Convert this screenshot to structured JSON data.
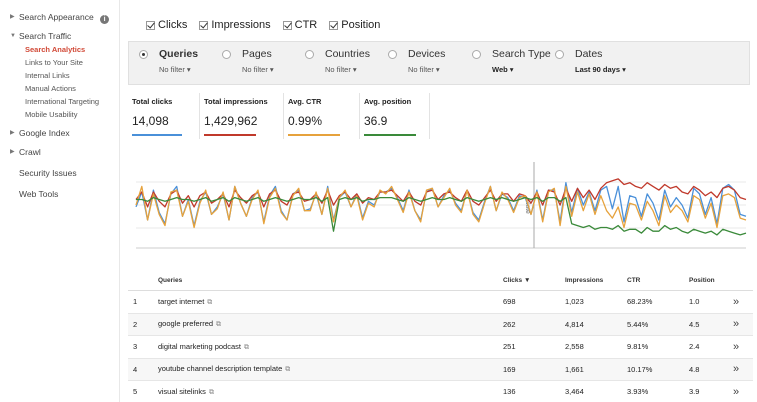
{
  "sidebar": {
    "items": [
      {
        "label": "Search Appearance",
        "info": "i"
      },
      {
        "label": "Search Traffic"
      },
      {
        "label": "Google Index"
      },
      {
        "label": "Crawl"
      },
      {
        "label": "Security Issues"
      },
      {
        "label": "Web Tools"
      }
    ],
    "subitems": [
      "Search Analytics",
      "Links to Your Site",
      "Internal Links",
      "Manual Actions",
      "International Targeting",
      "Mobile Usability"
    ]
  },
  "metrics": [
    "Clicks",
    "Impressions",
    "CTR",
    "Position"
  ],
  "filters": [
    {
      "label": "Queries",
      "value": "No filter ▾",
      "selected": true
    },
    {
      "label": "Pages",
      "value": "No filter ▾",
      "selected": false
    },
    {
      "label": "Countries",
      "value": "No filter ▾",
      "selected": false
    },
    {
      "label": "Devices",
      "value": "No filter ▾",
      "selected": false
    },
    {
      "label": "Search Type",
      "value": "Web ▾",
      "selected": false
    },
    {
      "label": "Dates",
      "value": "Last 90 days ▾",
      "selected": false
    }
  ],
  "totals": [
    {
      "label": "Total clicks",
      "value": "14,098",
      "color": "#4a90d9"
    },
    {
      "label": "Total impressions",
      "value": "1,429,962",
      "color": "#c0392b"
    },
    {
      "label": "Avg. CTR",
      "value": "0.99%",
      "color": "#e6a23c"
    },
    {
      "label": "Avg. position",
      "value": "36.9",
      "color": "#3a8a3a"
    }
  ],
  "chart_data": {
    "type": "line",
    "annotation": "Note",
    "series": [
      {
        "name": "Clicks",
        "color": "#4a90d9",
        "values": [
          44,
          60,
          30,
          62,
          38,
          26,
          58,
          66,
          34,
          52,
          24,
          50,
          60,
          36,
          44,
          58,
          30,
          66,
          48,
          34,
          54,
          60,
          28,
          56,
          66,
          40,
          30,
          58,
          62,
          40,
          42,
          58,
          36,
          66,
          30,
          54,
          60,
          44,
          58,
          32,
          50,
          46,
          60,
          60,
          64,
          54,
          40,
          62,
          40,
          30,
          60,
          64,
          44,
          56,
          62,
          48,
          40,
          62,
          38,
          30,
          50,
          66,
          40,
          58,
          54,
          40,
          56,
          54,
          36,
          62,
          30,
          62,
          62,
          28,
          70,
          38,
          64,
          46,
          60,
          40,
          62,
          66,
          42,
          66,
          28,
          56,
          54,
          34,
          58,
          48,
          30,
          62,
          44,
          54,
          46,
          32,
          64,
          58,
          36,
          54,
          26,
          64,
          68,
          62,
          36,
          34
        ]
      },
      {
        "name": "Impressions",
        "color": "#c0392b",
        "values": [
          52,
          60,
          44,
          60,
          50,
          44,
          58,
          62,
          48,
          56,
          44,
          56,
          60,
          48,
          52,
          58,
          44,
          62,
          54,
          48,
          56,
          60,
          44,
          58,
          62,
          50,
          46,
          58,
          60,
          50,
          52,
          58,
          48,
          62,
          46,
          56,
          60,
          52,
          58,
          48,
          54,
          52,
          60,
          60,
          62,
          56,
          50,
          60,
          50,
          46,
          60,
          62,
          52,
          58,
          60,
          54,
          50,
          62,
          50,
          46,
          54,
          62,
          50,
          58,
          58,
          50,
          58,
          56,
          48,
          60,
          46,
          62,
          60,
          46,
          64,
          50,
          64,
          54,
          62,
          52,
          64,
          70,
          72,
          74,
          68,
          70,
          66,
          64,
          70,
          66,
          62,
          68,
          64,
          66,
          60,
          58,
          66,
          62,
          56,
          60,
          54,
          64,
          66,
          62,
          54,
          52
        ]
      },
      {
        "name": "CTR",
        "color": "#e6a23c",
        "values": [
          46,
          66,
          30,
          58,
          36,
          24,
          60,
          62,
          34,
          50,
          22,
          48,
          62,
          36,
          42,
          60,
          30,
          66,
          48,
          34,
          52,
          62,
          26,
          54,
          64,
          38,
          30,
          56,
          64,
          40,
          40,
          60,
          36,
          64,
          28,
          54,
          62,
          44,
          56,
          30,
          48,
          44,
          62,
          58,
          66,
          52,
          38,
          60,
          40,
          28,
          62,
          64,
          44,
          54,
          64,
          46,
          38,
          62,
          36,
          28,
          48,
          66,
          40,
          60,
          52,
          38,
          54,
          56,
          36,
          60,
          28,
          60,
          64,
          24,
          66,
          34,
          60,
          40,
          58,
          36,
          56,
          40,
          32,
          44,
          22,
          48,
          46,
          30,
          50,
          40,
          24,
          56,
          38,
          46,
          40,
          28,
          56,
          52,
          32,
          48,
          22,
          56,
          58,
          54,
          32,
          30
        ]
      },
      {
        "name": "Position",
        "color": "#3a8a3a",
        "values": [
          52,
          52,
          50,
          54,
          52,
          50,
          52,
          54,
          52,
          52,
          50,
          52,
          54,
          50,
          52,
          54,
          50,
          54,
          52,
          50,
          52,
          54,
          50,
          52,
          54,
          52,
          50,
          52,
          54,
          52,
          52,
          54,
          50,
          54,
          18,
          52,
          54,
          52,
          54,
          50,
          52,
          52,
          54,
          54,
          54,
          52,
          50,
          54,
          52,
          50,
          52,
          54,
          52,
          52,
          54,
          52,
          50,
          54,
          52,
          50,
          52,
          54,
          52,
          54,
          52,
          50,
          52,
          54,
          52,
          54,
          50,
          54,
          54,
          50,
          54,
          26,
          24,
          22,
          24,
          20,
          22,
          22,
          20,
          24,
          18,
          20,
          20,
          16,
          22,
          18,
          18,
          24,
          20,
          22,
          18,
          16,
          20,
          18,
          16,
          18,
          14,
          20,
          18,
          16,
          14,
          16
        ]
      }
    ],
    "xlabel": "",
    "ylabel": "",
    "ylim": [
      0,
      90
    ]
  },
  "table": {
    "headers": [
      "Queries",
      "Clicks ▼",
      "Impressions",
      "CTR",
      "Position"
    ],
    "rows": [
      {
        "num": "1",
        "query": "target internet",
        "clicks": "698",
        "impressions": "1,023",
        "ctr": "68.23%",
        "position": "1.0"
      },
      {
        "num": "2",
        "query": "google preferred",
        "clicks": "262",
        "impressions": "4,814",
        "ctr": "5.44%",
        "position": "4.5"
      },
      {
        "num": "3",
        "query": "digital marketing podcast",
        "clicks": "251",
        "impressions": "2,558",
        "ctr": "9.81%",
        "position": "2.4"
      },
      {
        "num": "4",
        "query": "youtube channel description template",
        "clicks": "169",
        "impressions": "1,661",
        "ctr": "10.17%",
        "position": "4.8"
      },
      {
        "num": "5",
        "query": "visual sitelinks",
        "clicks": "136",
        "impressions": "3,464",
        "ctr": "3.93%",
        "position": "3.9"
      }
    ],
    "row_arrow": "»",
    "link_icon": "⧉"
  }
}
